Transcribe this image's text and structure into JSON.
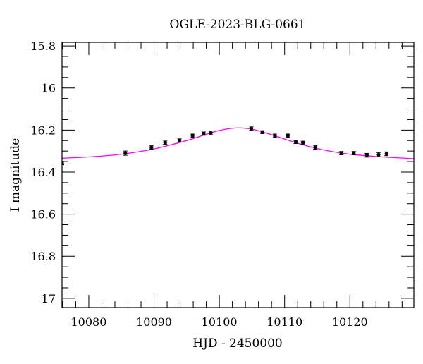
{
  "chart_data": {
    "type": "scatter",
    "title": "OGLE-2023-BLG-0661",
    "xlabel": "HJD - 2450000",
    "ylabel": "I magnitude",
    "xlim": [
      10075.9,
      10129.8
    ],
    "ylim": [
      15.783,
      17.044
    ],
    "y_inverted": true,
    "xticks": [
      10080,
      10090,
      10100,
      10110,
      10120
    ],
    "xtick_labels": [
      "10080",
      "10090",
      "10100",
      "10110",
      "10120"
    ],
    "yticks": [
      15.8,
      16,
      16.2,
      16.4,
      16.6,
      16.8,
      17
    ],
    "ytick_labels": [
      "15.8",
      "16",
      "16.2",
      "16.4",
      "16.6",
      "16.8",
      "17"
    ],
    "x_minor_step": 2,
    "y_minor_step": 0.05,
    "grid": false,
    "series": [
      {
        "name": "data",
        "color": "#000000",
        "x": [
          10075.9,
          10085.6,
          10089.6,
          10091.7,
          10093.9,
          10095.9,
          10097.6,
          10098.7,
          10104.9,
          10106.6,
          10108.5,
          10110.5,
          10111.7,
          10112.8,
          10114.7,
          10118.7,
          10120.6,
          10122.6,
          10124.4,
          10125.6
        ],
        "y": [
          16.357,
          16.31,
          16.283,
          16.26,
          16.25,
          16.227,
          16.217,
          16.213,
          16.193,
          16.21,
          16.227,
          16.227,
          16.257,
          16.26,
          16.283,
          16.31,
          16.31,
          16.32,
          16.317,
          16.313
        ],
        "yerr": [
          0.008,
          0.01,
          0.008,
          0.008,
          0.008,
          0.008,
          0.008,
          0.009,
          0.008,
          0.007,
          0.008,
          0.008,
          0.007,
          0.007,
          0.008,
          0.008,
          0.008,
          0.009,
          0.01,
          0.009
        ]
      },
      {
        "name": "model",
        "color": "#ff00ff",
        "x": [
          10075.9,
          10080,
          10085,
          10090,
          10095,
          10098,
          10100,
          10102.5,
          10105,
          10108,
          10110,
          10113,
          10116,
          10120,
          10125,
          10129.8
        ],
        "y": [
          16.334,
          16.328,
          16.315,
          16.29,
          16.25,
          16.22,
          16.202,
          16.19,
          16.196,
          16.222,
          16.243,
          16.272,
          16.295,
          16.315,
          16.328,
          16.336
        ]
      }
    ]
  }
}
